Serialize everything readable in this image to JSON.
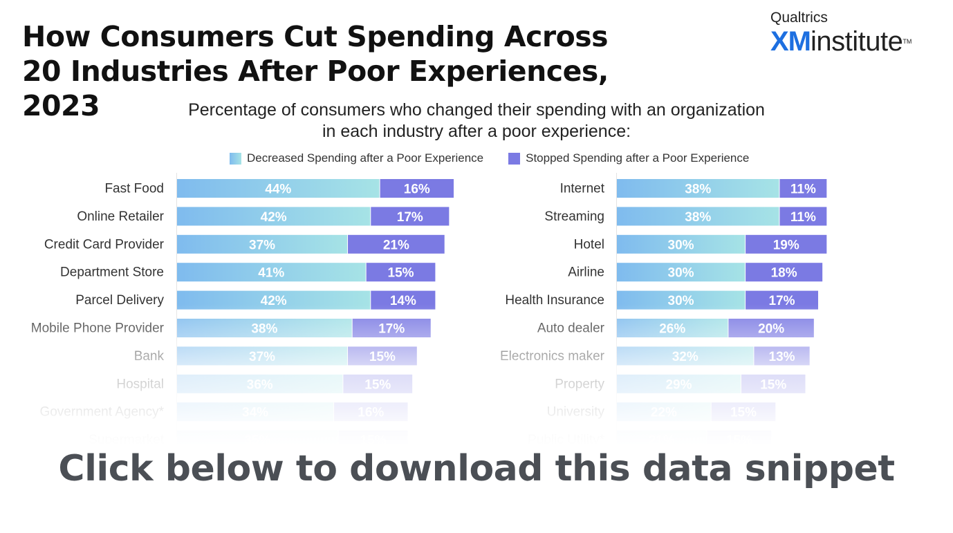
{
  "title": "How Consumers Cut Spending Across 20 Industries After Poor Experiences, 2023",
  "brand": {
    "top": "Qualtrics",
    "xm": "XM",
    "name": "institute",
    "tm": "TM"
  },
  "subtitle_line1": "Percentage of consumers who changed their spending with an organization",
  "subtitle_line2": "in each industry after a poor experience:",
  "cta": "Click below to download this data snippet",
  "colors": {
    "decreased_start": "#7fbbee",
    "decreased_end": "#a6e3e6",
    "stopped": "#7b7ae3",
    "text": "#222222"
  },
  "chart_data": [
    {
      "type": "bar",
      "orientation": "horizontal-stacked",
      "legend": "top",
      "categories": [
        "Fast Food",
        "Online Retailer",
        "Credit Card Provider",
        "Department Store",
        "Parcel Delivery",
        "Mobile Phone Provider",
        "Bank",
        "Hospital",
        "Government Agency*",
        "Supermarket"
      ],
      "series": [
        {
          "name": "Decreased Spending after a Poor Experience",
          "values": [
            44,
            42,
            37,
            41,
            42,
            38,
            37,
            36,
            34,
            35
          ]
        },
        {
          "name": "Stopped Spending after a Poor Experience",
          "values": [
            16,
            17,
            21,
            15,
            14,
            17,
            15,
            15,
            16,
            15
          ]
        }
      ],
      "value_suffix": "%",
      "xlim": [
        0,
        60
      ]
    },
    {
      "type": "bar",
      "orientation": "horizontal-stacked",
      "legend": "top",
      "categories": [
        "Internet",
        "Streaming",
        "Hotel",
        "Airline",
        "Health Insurance",
        "Auto dealer",
        "Electronics maker",
        "Property",
        "University",
        "Public Utility*"
      ],
      "series": [
        {
          "name": "Decreased Spending after a Poor Experience",
          "values": [
            38,
            38,
            30,
            30,
            30,
            26,
            32,
            29,
            22,
            21
          ]
        },
        {
          "name": "Stopped Spending after a Poor Experience",
          "values": [
            11,
            11,
            19,
            18,
            17,
            20,
            13,
            15,
            15,
            15
          ]
        }
      ],
      "value_suffix": "%",
      "xlim": [
        0,
        60
      ]
    }
  ]
}
